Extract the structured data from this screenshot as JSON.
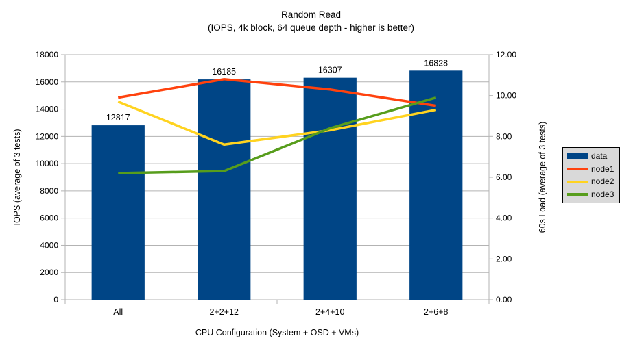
{
  "chart_data": {
    "type": "combo-bar-line",
    "title": "Random Read",
    "subtitle": "(IOPS, 4k block, 64 queue depth - higher is better)",
    "xlabel": "CPU Configuration (System + OSD + VMs)",
    "categories": [
      "All",
      "2+2+12",
      "2+4+10",
      "2+6+8"
    ],
    "bar_series": {
      "name": "data",
      "color": "#004586",
      "axis": "left",
      "values": [
        12817,
        16185,
        16307,
        16828
      ],
      "value_labels": [
        "12817",
        "16185",
        "16307",
        "16828"
      ]
    },
    "line_series": [
      {
        "name": "node1",
        "color": "#ff420e",
        "axis": "right",
        "values": [
          9.9,
          10.8,
          10.3,
          9.5
        ]
      },
      {
        "name": "node2",
        "color": "#ffd320",
        "axis": "right",
        "values": [
          9.7,
          7.6,
          8.3,
          9.3
        ]
      },
      {
        "name": "node3",
        "color": "#579d1c",
        "axis": "right",
        "values": [
          6.2,
          6.3,
          8.4,
          9.9
        ]
      }
    ],
    "left_axis": {
      "title": "IOPS (average of 3 tests)",
      "min": 0,
      "max": 18000,
      "step": 2000,
      "tick_labels": [
        "0",
        "2000",
        "4000",
        "6000",
        "8000",
        "10000",
        "12000",
        "14000",
        "16000",
        "18000"
      ]
    },
    "right_axis": {
      "title": "60s Load (average of 3 tests)",
      "min": 0,
      "max": 12,
      "step": 2,
      "tick_labels": [
        "0.00",
        "2.00",
        "4.00",
        "6.00",
        "8.00",
        "10.00",
        "12.00"
      ]
    },
    "legend": {
      "position": "right",
      "entries": [
        {
          "label": "data",
          "color": "#004586",
          "type": "rect"
        },
        {
          "label": "node1",
          "color": "#ff420e",
          "type": "line"
        },
        {
          "label": "node2",
          "color": "#ffd320",
          "type": "line"
        },
        {
          "label": "node3",
          "color": "#579d1c",
          "type": "line"
        }
      ]
    },
    "grid": {
      "on": true,
      "color": "#b3b3b3"
    },
    "text_color": "#000000",
    "background": "#ffffff"
  }
}
